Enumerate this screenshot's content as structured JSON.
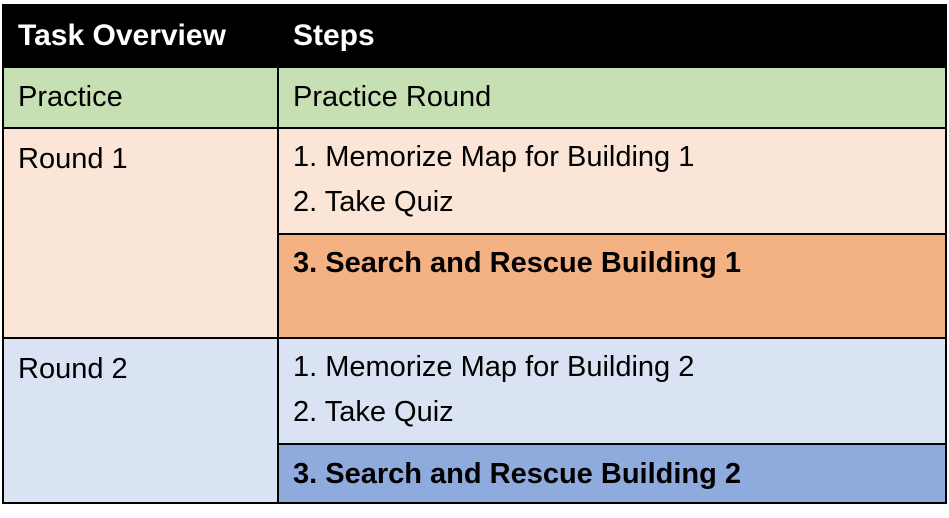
{
  "header": {
    "col1": "Task Overview",
    "col2": "Steps"
  },
  "rows": {
    "practice": {
      "label": "Practice",
      "step": "Practice Round"
    },
    "round1": {
      "label": "Round 1",
      "step1": "1. Memorize Map for Building 1",
      "step2": "2. Take Quiz",
      "step3": "3. Search and Rescue Building 1"
    },
    "round2": {
      "label": "Round 2",
      "step1": "1. Memorize Map for Building 2",
      "step2": "2. Take Quiz",
      "step3": "3. Search and Rescue Building 2"
    }
  },
  "colors": {
    "header_bg": "#000000",
    "practice_bg": "#c6e0b4",
    "round1_bg": "#fbe5d6",
    "round1_highlight": "#f4b183",
    "round2_bg": "#dae3f3",
    "round2_highlight": "#8faadc"
  }
}
